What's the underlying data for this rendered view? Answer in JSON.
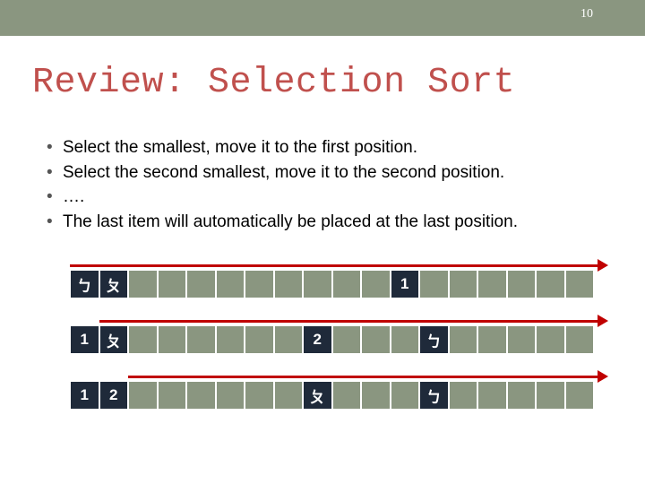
{
  "page_number": "10",
  "title": "Review: Selection Sort",
  "bullets": [
    "Select the smallest, move it to the first position.",
    "Select the second smallest, move it to the second position.",
    "….",
    "The last item will automatically be placed at the last position."
  ],
  "diagram": {
    "cell_count": 18,
    "colors": {
      "cell_default": "#8a9680",
      "cell_dark": "#1f2a3a",
      "cell_text": "#ffffff",
      "arrow": "#c00000",
      "title": "#c0504d",
      "header_bg": "#8a9680"
    },
    "rows": [
      {
        "arrow_start_cell": 0,
        "cells": [
          {
            "i": 0,
            "label": "ㄅ",
            "dark": true
          },
          {
            "i": 1,
            "label": "ㄆ",
            "dark": true
          },
          {
            "i": 11,
            "label": "1",
            "dark": true
          }
        ]
      },
      {
        "arrow_start_cell": 1,
        "cells": [
          {
            "i": 0,
            "label": "1",
            "dark": true
          },
          {
            "i": 1,
            "label": "ㄆ",
            "dark": true
          },
          {
            "i": 8,
            "label": "2",
            "dark": true
          },
          {
            "i": 12,
            "label": "ㄅ",
            "dark": true
          }
        ]
      },
      {
        "arrow_start_cell": 2,
        "cells": [
          {
            "i": 0,
            "label": "1",
            "dark": true
          },
          {
            "i": 1,
            "label": "2",
            "dark": true
          },
          {
            "i": 8,
            "label": "ㄆ",
            "dark": true
          },
          {
            "i": 12,
            "label": "ㄅ",
            "dark": true
          }
        ]
      }
    ]
  }
}
